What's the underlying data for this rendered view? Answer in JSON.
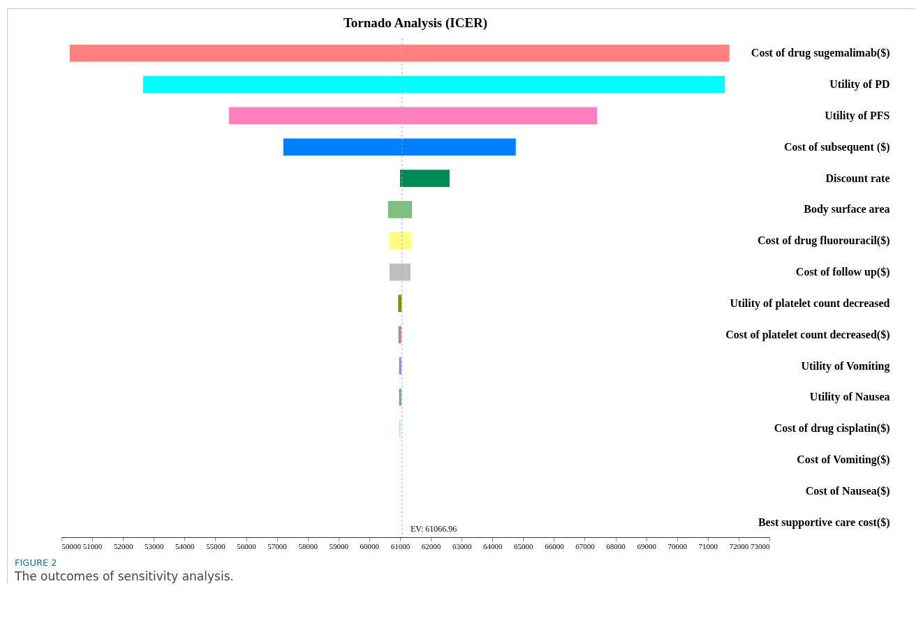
{
  "chart_data": {
    "type": "bar",
    "orientation": "horizontal",
    "title": "Tornado Analysis (ICER)",
    "categories": [
      "Cost of drug sugemalimab($)",
      "Utility of PD",
      "Utility of PFS",
      "Cost of subsequent ($)",
      "Discount rate",
      "Body surface area",
      "Cost of drug fluorouracil($)",
      "Cost of follow up($)",
      "Utility of platelet count decreased",
      "Cost of platelet count decreased($)",
      "Utility of Vomiting",
      "Utility of Nausea",
      "Cost of drug cisplatin($)",
      "Cost of Vomiting($)",
      "Cost of Nausea($)",
      "Best supportive care cost($)"
    ],
    "base": [
      50270,
      52650,
      55440,
      57210,
      61000,
      60610,
      60640,
      60660,
      60940,
      60950,
      60970,
      60970,
      60980,
      null,
      null,
      null
    ],
    "values": [
      21430,
      18900,
      11960,
      7550,
      1610,
      780,
      720,
      680,
      110,
      90,
      70,
      70,
      30,
      null,
      null,
      null
    ],
    "colors": [
      "#ff7f7f",
      "#00ffff",
      "#ff7fbf",
      "#007fff",
      "#008a55",
      "#7fbf7f",
      "#ffff7f",
      "#bfbfbf",
      "#8a8a00",
      "#bf7f7f",
      "#8a8aca",
      "#6f9f9f",
      "#9fef9f",
      "#cccccc",
      "#cccccc",
      "#cccccc"
    ],
    "xlim": [
      50000,
      73000
    ],
    "xticks": [
      50000,
      51000,
      52000,
      53000,
      54000,
      55000,
      56000,
      57000,
      58000,
      59000,
      60000,
      61000,
      62000,
      63000,
      64000,
      65000,
      66000,
      67000,
      68000,
      69000,
      70000,
      71000,
      72000,
      73000
    ],
    "ref_lines": [
      {
        "axis": "x",
        "value": 61066.96,
        "label": "EV: 61066.96",
        "color": "#aaaaaa",
        "line_style": "dashed"
      }
    ],
    "annotations": [
      "FIGURE 2",
      "The outcomes of sensitivity analysis."
    ]
  }
}
